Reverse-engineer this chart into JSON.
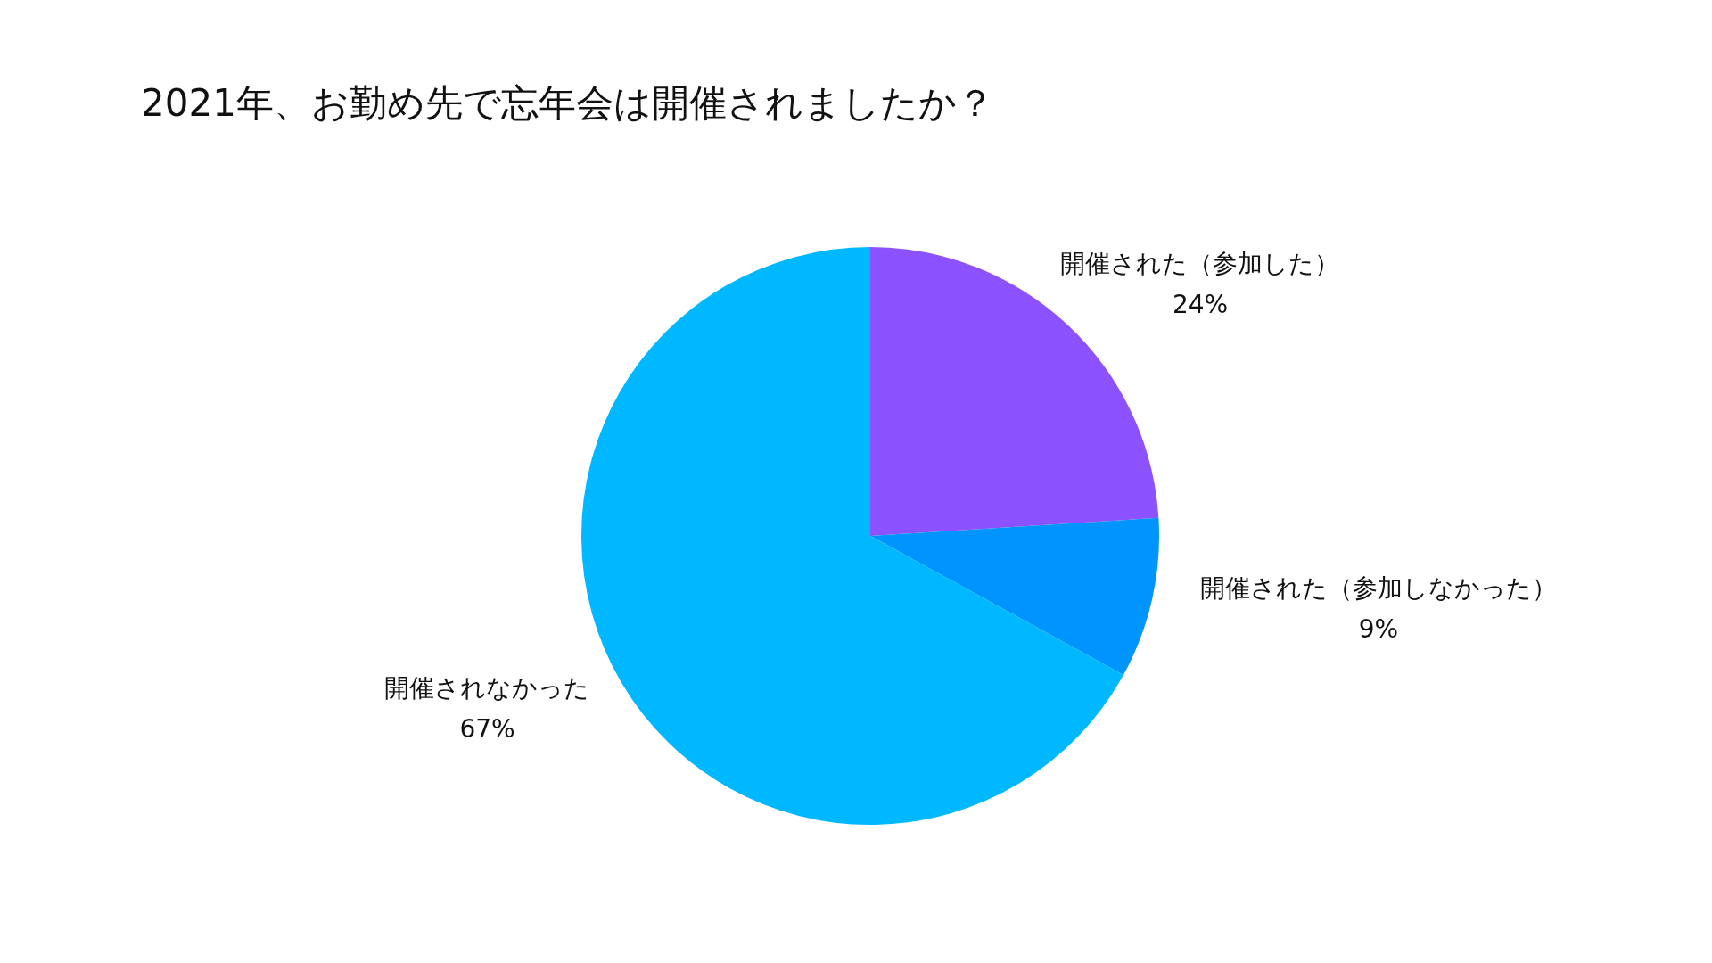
{
  "chart_data": {
    "type": "pie",
    "title": "2021年、お勤め先で忘年会は開催されましたか？",
    "categories": [
      "開催された（参加した）",
      "開催された（参加しなかった）",
      "開催されなかった"
    ],
    "values": [
      24,
      9,
      67
    ],
    "value_labels": [
      "24%",
      "9%",
      "67%"
    ],
    "colors": [
      "#8c52ff",
      "#0094ff",
      "#00b8ff"
    ]
  }
}
